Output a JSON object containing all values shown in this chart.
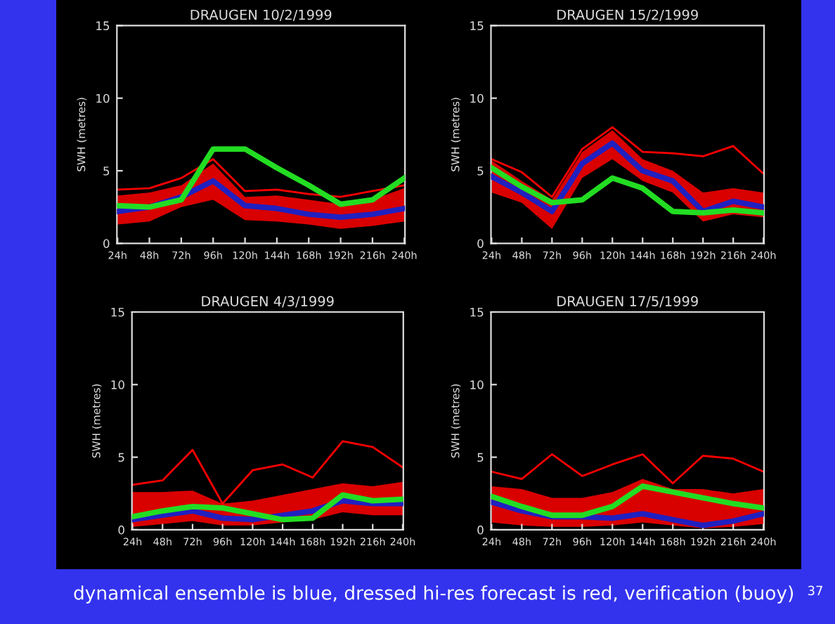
{
  "chart_data": [
    {
      "type": "line",
      "title": "DRAUGEN 10/2/1999",
      "ylabel": "SWH (metres)",
      "categories": [
        "24h",
        "48h",
        "72h",
        "96h",
        "120h",
        "144h",
        "168h",
        "192h",
        "216h",
        "240h"
      ],
      "ylim": [
        0,
        15
      ],
      "yticks": [
        0,
        5,
        10,
        15
      ],
      "grid": false,
      "marker": "none",
      "line_style": "solid",
      "series": [
        {
          "color": "#ff0000",
          "values": [
            3.7,
            3.8,
            4.5,
            5.8,
            3.6,
            3.7,
            3.4,
            3.2,
            3.6,
            4.0
          ],
          "lower": [
            1.3,
            1.5,
            2.5,
            3.0,
            1.6,
            1.5,
            1.3,
            1.0,
            1.2,
            1.5
          ],
          "upper": [
            3.3,
            3.5,
            4.0,
            5.5,
            3.2,
            3.3,
            3.0,
            2.7,
            3.0,
            3.8
          ]
        },
        {
          "color": "#2020c0",
          "values": [
            2.2,
            2.5,
            3.2,
            4.3,
            2.6,
            2.4,
            2.0,
            1.8,
            2.0,
            2.4
          ]
        },
        {
          "color": "#22dd22",
          "values": [
            2.6,
            2.5,
            3.0,
            6.5,
            6.5,
            5.2,
            4.0,
            2.7,
            3.0,
            4.5
          ]
        }
      ]
    },
    {
      "type": "line",
      "title": "DRAUGEN 15/2/1999",
      "ylabel": "SWH (metres)",
      "categories": [
        "24h",
        "48h",
        "72h",
        "96h",
        "120h",
        "144h",
        "168h",
        "192h",
        "216h",
        "240h"
      ],
      "ylim": [
        0,
        15
      ],
      "yticks": [
        0,
        5,
        10,
        15
      ],
      "grid": false,
      "marker": "none",
      "line_style": "solid",
      "series": [
        {
          "color": "#ff0000",
          "values": [
            5.8,
            4.9,
            3.2,
            6.5,
            8.0,
            6.3,
            6.2,
            6.0,
            6.7,
            4.8
          ],
          "lower": [
            3.5,
            2.8,
            1.0,
            4.5,
            5.8,
            4.3,
            3.5,
            1.5,
            2.0,
            1.8
          ],
          "upper": [
            5.7,
            4.3,
            3.0,
            6.3,
            7.8,
            5.8,
            5.0,
            3.5,
            3.8,
            3.5
          ]
        },
        {
          "color": "#2020c0",
          "values": [
            4.6,
            3.5,
            2.2,
            5.5,
            6.9,
            5.0,
            4.3,
            2.2,
            2.9,
            2.5
          ]
        },
        {
          "color": "#22dd22",
          "values": [
            5.2,
            3.9,
            2.8,
            3.0,
            4.5,
            3.8,
            2.2,
            2.1,
            2.3,
            2.1
          ]
        }
      ]
    },
    {
      "type": "line",
      "title": "DRAUGEN 4/3/1999",
      "ylabel": "SWH (metres)",
      "categories": [
        "24h",
        "48h",
        "72h",
        "96h",
        "120h",
        "144h",
        "168h",
        "192h",
        "216h",
        "240h"
      ],
      "ylim": [
        0,
        15
      ],
      "yticks": [
        0,
        5,
        10,
        15
      ],
      "grid": false,
      "marker": "none",
      "line_style": "solid",
      "series": [
        {
          "color": "#ff0000",
          "values": [
            3.1,
            3.4,
            5.5,
            1.8,
            4.1,
            4.5,
            3.6,
            6.1,
            5.7,
            4.3
          ],
          "lower": [
            0.2,
            0.4,
            0.6,
            0.3,
            0.3,
            0.5,
            0.7,
            1.2,
            1.0,
            1.0
          ],
          "upper": [
            2.6,
            2.6,
            2.7,
            1.8,
            2.0,
            2.4,
            2.8,
            3.2,
            3.0,
            3.3
          ]
        },
        {
          "color": "#2020c0",
          "values": [
            0.7,
            1.0,
            1.3,
            0.8,
            0.7,
            1.0,
            1.3,
            2.0,
            1.8,
            1.8
          ]
        },
        {
          "color": "#22dd22",
          "values": [
            0.9,
            1.3,
            1.6,
            1.5,
            1.1,
            0.7,
            0.8,
            2.4,
            2.0,
            2.1
          ]
        }
      ]
    },
    {
      "type": "line",
      "title": "DRAUGEN 17/5/1999",
      "ylabel": "SWH (metres)",
      "categories": [
        "24h",
        "48h",
        "72h",
        "96h",
        "120h",
        "144h",
        "168h",
        "192h",
        "216h",
        "240h"
      ],
      "ylim": [
        0,
        15
      ],
      "yticks": [
        0,
        5,
        10,
        15
      ],
      "grid": false,
      "marker": "none",
      "line_style": "solid",
      "annotations": [
        "dynamical ensemble is blue, dressed hi-res forecast is red, verification (buoy)",
        "37"
      ],
      "series": [
        {
          "color": "#ff0000",
          "values": [
            4.0,
            3.5,
            5.2,
            3.7,
            4.5,
            5.2,
            3.2,
            5.1,
            4.9,
            4.0
          ],
          "lower": [
            0.5,
            0.3,
            0.2,
            0.2,
            0.3,
            0.5,
            0.3,
            0.1,
            0.2,
            0.4
          ],
          "upper": [
            3.0,
            2.8,
            2.2,
            2.2,
            2.6,
            3.5,
            2.8,
            2.8,
            2.5,
            2.8
          ]
        },
        {
          "color": "#2020c0",
          "values": [
            1.9,
            1.3,
            0.9,
            0.9,
            0.8,
            1.1,
            0.7,
            0.3,
            0.6,
            1.1
          ]
        },
        {
          "color": "#22dd22",
          "values": [
            2.3,
            1.6,
            1.0,
            1.0,
            1.6,
            3.0,
            2.6,
            2.2,
            1.8,
            1.5
          ]
        }
      ]
    }
  ]
}
